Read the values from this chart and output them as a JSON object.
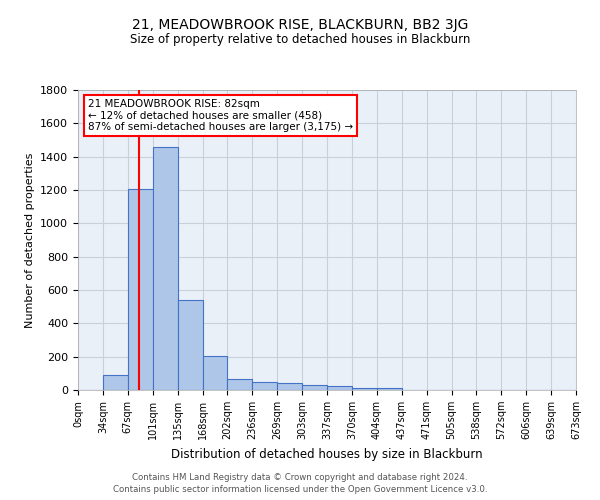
{
  "title": "21, MEADOWBROOK RISE, BLACKBURN, BB2 3JG",
  "subtitle": "Size of property relative to detached houses in Blackburn",
  "xlabel": "Distribution of detached houses by size in Blackburn",
  "ylabel": "Number of detached properties",
  "footer_line1": "Contains HM Land Registry data © Crown copyright and database right 2024.",
  "footer_line2": "Contains public sector information licensed under the Open Government Licence v3.0.",
  "bin_labels": [
    "0sqm",
    "34sqm",
    "67sqm",
    "101sqm",
    "135sqm",
    "168sqm",
    "202sqm",
    "236sqm",
    "269sqm",
    "303sqm",
    "337sqm",
    "370sqm",
    "404sqm",
    "437sqm",
    "471sqm",
    "505sqm",
    "538sqm",
    "572sqm",
    "606sqm",
    "639sqm",
    "673sqm"
  ],
  "bar_values": [
    0,
    90,
    1205,
    1460,
    540,
    205,
    65,
    50,
    40,
    28,
    25,
    10,
    15,
    0,
    0,
    0,
    0,
    0,
    0,
    0
  ],
  "bar_color": "#aec6e8",
  "bar_edge_color": "#4472c4",
  "bg_color": "#eaf0f8",
  "grid_color": "#c8d0dc",
  "annotation_text": "21 MEADOWBROOK RISE: 82sqm\n← 12% of detached houses are smaller (458)\n87% of semi-detached houses are larger (3,175) →",
  "annotation_box_color": "white",
  "annotation_box_edge": "red",
  "red_line_color": "red",
  "ylim": [
    0,
    1800
  ],
  "yticks": [
    0,
    200,
    400,
    600,
    800,
    1000,
    1200,
    1400,
    1600,
    1800
  ],
  "property_sqm": 82
}
